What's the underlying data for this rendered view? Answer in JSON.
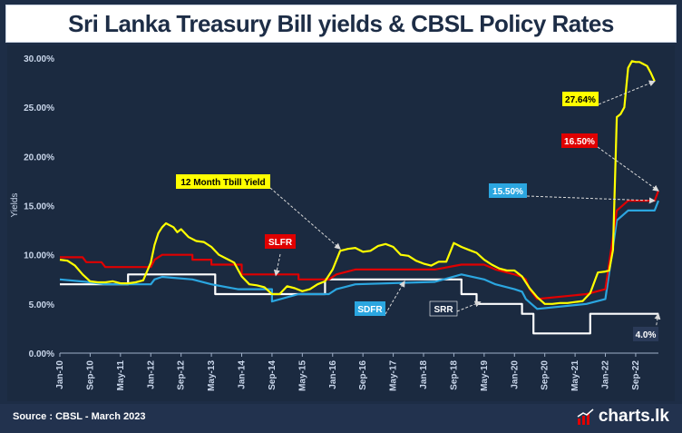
{
  "title": "Sri Lanka Treasury Bill yields & CBSL Policy Rates",
  "source": "Source : CBSL - March 2023",
  "brand": "charts.lk",
  "colors": {
    "background": "#1b2a40",
    "tbill": "#ffff00",
    "slfr": "#e00000",
    "sdfr": "#2ba6e0",
    "srr": "#ffffff",
    "axis_text": "#c9d6ea"
  },
  "chart_data": {
    "type": "line",
    "title": "Sri Lanka Treasury Bill yields & CBSL Policy Rates",
    "xlabel": "",
    "ylabel": "Yields",
    "ylim": [
      0,
      30
    ],
    "yticks": [
      "0.00%",
      "5.00%",
      "10.00%",
      "15.00%",
      "20.00%",
      "25.00%",
      "30.00%"
    ],
    "xticks": [
      "Jan-10",
      "Sep-10",
      "May-11",
      "Jan-12",
      "Sep-12",
      "May-13",
      "Jan-14",
      "Sep-14",
      "May-15",
      "Jan-16",
      "Sep-16",
      "May-17",
      "Jan-18",
      "Sep-18",
      "May-19",
      "Jan-20",
      "Sep-20",
      "May-21",
      "Jan-22",
      "Sep-22"
    ],
    "grid": false,
    "series": [
      {
        "name": "12 Month Tbill Yield",
        "color": "#ffff00",
        "points": [
          [
            "2010-01",
            9.5
          ],
          [
            "2010-03",
            9.4
          ],
          [
            "2010-05",
            8.9
          ],
          [
            "2010-07",
            8.0
          ],
          [
            "2010-09",
            7.3
          ],
          [
            "2010-11",
            7.2
          ],
          [
            "2011-01",
            7.2
          ],
          [
            "2011-03",
            7.3
          ],
          [
            "2011-05",
            7.1
          ],
          [
            "2011-07",
            7.1
          ],
          [
            "2011-09",
            7.2
          ],
          [
            "2011-11",
            7.4
          ],
          [
            "2012-01",
            9.2
          ],
          [
            "2012-02",
            11.0
          ],
          [
            "2012-03",
            12.2
          ],
          [
            "2012-04",
            12.8
          ],
          [
            "2012-05",
            13.2
          ],
          [
            "2012-07",
            12.8
          ],
          [
            "2012-08",
            12.3
          ],
          [
            "2012-09",
            12.6
          ],
          [
            "2012-11",
            11.8
          ],
          [
            "2013-01",
            11.4
          ],
          [
            "2013-03",
            11.3
          ],
          [
            "2013-05",
            10.8
          ],
          [
            "2013-07",
            10.0
          ],
          [
            "2013-09",
            9.6
          ],
          [
            "2013-11",
            9.2
          ],
          [
            "2014-01",
            7.8
          ],
          [
            "2014-03",
            7.0
          ],
          [
            "2014-05",
            6.9
          ],
          [
            "2014-07",
            6.7
          ],
          [
            "2014-09",
            6.0
          ],
          [
            "2014-11",
            6.0
          ],
          [
            "2015-01",
            6.8
          ],
          [
            "2015-03",
            6.6
          ],
          [
            "2015-05",
            6.3
          ],
          [
            "2015-07",
            6.5
          ],
          [
            "2015-09",
            7.0
          ],
          [
            "2015-11",
            7.3
          ],
          [
            "2016-01",
            8.5
          ],
          [
            "2016-03",
            10.4
          ],
          [
            "2016-05",
            10.6
          ],
          [
            "2016-07",
            10.7
          ],
          [
            "2016-09",
            10.3
          ],
          [
            "2016-11",
            10.4
          ],
          [
            "2017-01",
            10.9
          ],
          [
            "2017-03",
            11.1
          ],
          [
            "2017-05",
            10.8
          ],
          [
            "2017-07",
            10.0
          ],
          [
            "2017-09",
            9.9
          ],
          [
            "2017-11",
            9.4
          ],
          [
            "2018-01",
            9.1
          ],
          [
            "2018-03",
            8.9
          ],
          [
            "2018-05",
            9.3
          ],
          [
            "2018-07",
            9.3
          ],
          [
            "2018-09",
            11.2
          ],
          [
            "2018-11",
            10.8
          ],
          [
            "2019-01",
            10.5
          ],
          [
            "2019-03",
            10.2
          ],
          [
            "2019-05",
            9.5
          ],
          [
            "2019-07",
            9.0
          ],
          [
            "2019-09",
            8.6
          ],
          [
            "2019-11",
            8.4
          ],
          [
            "2020-01",
            8.4
          ],
          [
            "2020-03",
            7.8
          ],
          [
            "2020-05",
            6.6
          ],
          [
            "2020-07",
            5.7
          ],
          [
            "2020-09",
            5.0
          ],
          [
            "2020-11",
            5.0
          ],
          [
            "2021-01",
            5.1
          ],
          [
            "2021-03",
            5.1
          ],
          [
            "2021-05",
            5.2
          ],
          [
            "2021-07",
            5.3
          ],
          [
            "2021-09",
            6.1
          ],
          [
            "2021-11",
            8.2
          ],
          [
            "2022-01",
            8.3
          ],
          [
            "2022-02",
            8.4
          ],
          [
            "2022-03",
            10.5
          ],
          [
            "2022-04",
            24.0
          ],
          [
            "2022-05",
            24.3
          ],
          [
            "2022-06",
            25.0
          ],
          [
            "2022-07",
            29.0
          ],
          [
            "2022-08",
            29.7
          ],
          [
            "2022-09",
            29.6
          ],
          [
            "2022-10",
            29.6
          ],
          [
            "2022-11",
            29.4
          ],
          [
            "2022-12",
            29.2
          ],
          [
            "2023-01",
            28.5
          ],
          [
            "2023-02",
            27.64
          ]
        ]
      },
      {
        "name": "SLFR",
        "color": "#e00000",
        "points": [
          [
            "2010-01",
            9.75
          ],
          [
            "2010-07",
            9.75
          ],
          [
            "2010-08",
            9.25
          ],
          [
            "2010-12",
            9.25
          ],
          [
            "2011-01",
            8.75
          ],
          [
            "2012-01",
            8.75
          ],
          [
            "2012-02",
            9.5
          ],
          [
            "2012-04",
            10.0
          ],
          [
            "2012-12",
            10.0
          ],
          [
            "2012-12",
            9.5
          ],
          [
            "2013-05",
            9.5
          ],
          [
            "2013-05",
            9.0
          ],
          [
            "2014-01",
            9.0
          ],
          [
            "2014-01",
            8.0
          ],
          [
            "2015-04",
            8.0
          ],
          [
            "2015-04",
            7.5
          ],
          [
            "2015-12",
            7.5
          ],
          [
            "2016-02",
            8.0
          ],
          [
            "2016-07",
            8.5
          ],
          [
            "2018-04",
            8.5
          ],
          [
            "2018-04",
            8.5
          ],
          [
            "2018-11",
            9.0
          ],
          [
            "2019-05",
            9.0
          ],
          [
            "2019-08",
            8.5
          ],
          [
            "2020-01",
            8.0
          ],
          [
            "2020-03",
            7.75
          ],
          [
            "2020-04",
            7.5
          ],
          [
            "2020-05",
            6.5
          ],
          [
            "2020-07",
            5.5
          ],
          [
            "2021-08",
            6.0
          ],
          [
            "2022-01",
            6.5
          ],
          [
            "2022-04",
            14.5
          ],
          [
            "2022-07",
            15.5
          ],
          [
            "2023-02",
            15.5
          ],
          [
            "2023-03",
            16.5
          ]
        ]
      },
      {
        "name": "SDFR",
        "color": "#2ba6e0",
        "points": [
          [
            "2010-01",
            7.5
          ],
          [
            "2010-08",
            7.25
          ],
          [
            "2011-01",
            7.0
          ],
          [
            "2012-01",
            7.0
          ],
          [
            "2012-02",
            7.5
          ],
          [
            "2012-04",
            7.75
          ],
          [
            "2012-12",
            7.5
          ],
          [
            "2013-05",
            7.0
          ],
          [
            "2013-12",
            6.5
          ],
          [
            "2014-09",
            6.5
          ],
          [
            "2014-09",
            5.25
          ],
          [
            "2015-04",
            6.0
          ],
          [
            "2015-12",
            6.0
          ],
          [
            "2016-02",
            6.5
          ],
          [
            "2016-07",
            7.0
          ],
          [
            "2018-04",
            7.25
          ],
          [
            "2018-11",
            8.0
          ],
          [
            "2019-05",
            7.5
          ],
          [
            "2019-08",
            7.0
          ],
          [
            "2020-01",
            6.5
          ],
          [
            "2020-03",
            6.25
          ],
          [
            "2020-04",
            5.5
          ],
          [
            "2020-07",
            4.5
          ],
          [
            "2021-08",
            5.0
          ],
          [
            "2022-01",
            5.5
          ],
          [
            "2022-04",
            13.5
          ],
          [
            "2022-07",
            14.5
          ],
          [
            "2023-02",
            14.5
          ],
          [
            "2023-03",
            15.5
          ]
        ]
      },
      {
        "name": "SRR",
        "color": "#ffffff",
        "points": [
          [
            "2010-01",
            7.0
          ],
          [
            "2011-07",
            7.0
          ],
          [
            "2011-07",
            8.0
          ],
          [
            "2013-06",
            8.0
          ],
          [
            "2013-06",
            6.0
          ],
          [
            "2015-11",
            6.0
          ],
          [
            "2015-11",
            7.5
          ],
          [
            "2018-11",
            7.5
          ],
          [
            "2018-11",
            6.0
          ],
          [
            "2019-03",
            6.0
          ],
          [
            "2019-03",
            5.0
          ],
          [
            "2020-03",
            5.0
          ],
          [
            "2020-03",
            4.0
          ],
          [
            "2020-06",
            4.0
          ],
          [
            "2020-06",
            2.0
          ],
          [
            "2021-09",
            2.0
          ],
          [
            "2021-09",
            4.0
          ],
          [
            "2023-03",
            4.0
          ]
        ]
      }
    ],
    "annotations": [
      {
        "label": "12 Month Tbill Yield",
        "series": "12 Month Tbill Yield",
        "bg": "#ffff00",
        "fg": "#000000"
      },
      {
        "label": "SLFR",
        "series": "SLFR",
        "bg": "#e00000",
        "fg": "#ffffff"
      },
      {
        "label": "SDFR",
        "series": "SDFR",
        "bg": "#2ba6e0",
        "fg": "#ffffff"
      },
      {
        "label": "SRR",
        "series": "SRR",
        "bg": "#1d2d46",
        "fg": "#ffffff"
      },
      {
        "label": "27.64%",
        "series": "12 Month Tbill Yield",
        "bg": "#ffff00",
        "fg": "#000000"
      },
      {
        "label": "16.50%",
        "series": "SLFR",
        "bg": "#e00000",
        "fg": "#ffffff"
      },
      {
        "label": "15.50%",
        "series": "SDFR",
        "bg": "#2ba6e0",
        "fg": "#ffffff"
      },
      {
        "label": "4.0%",
        "series": "SRR",
        "bg": "#2a3a58",
        "fg": "#ffffff"
      }
    ]
  }
}
